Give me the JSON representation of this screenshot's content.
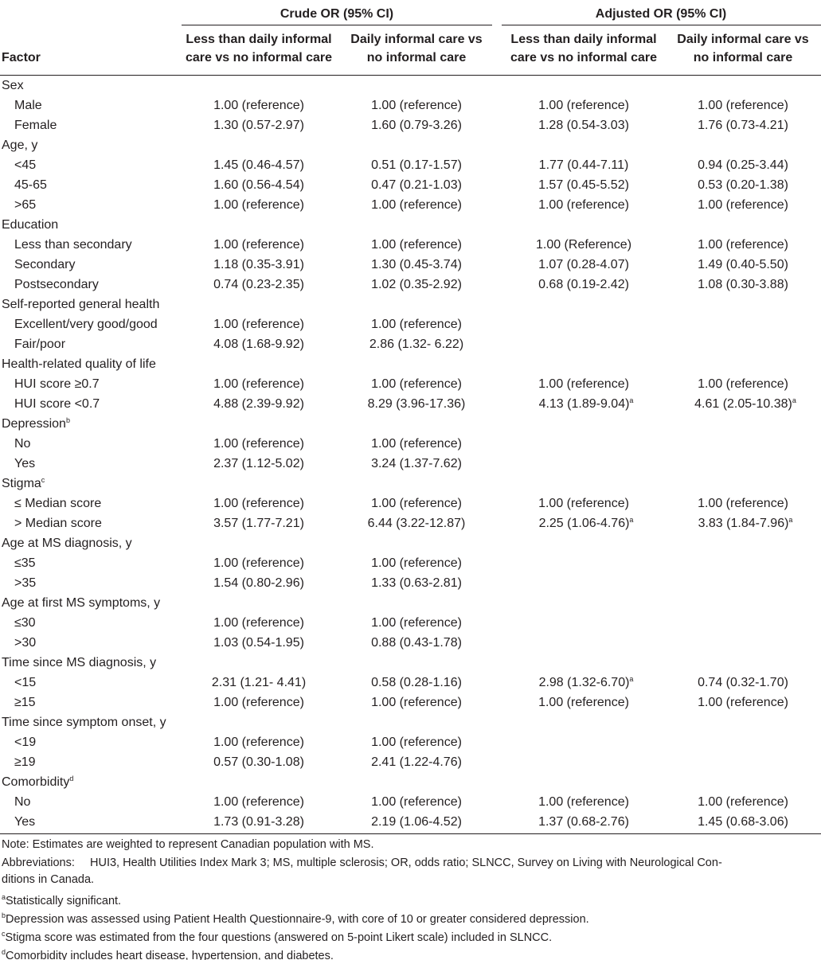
{
  "header": {
    "factor": "Factor",
    "groups": [
      {
        "label": "Crude OR (95% CI)",
        "columns": [
          [
            "Less than daily informal",
            "care vs no informal care"
          ],
          [
            "Daily informal care vs",
            "no informal care"
          ]
        ]
      },
      {
        "label": "Adjusted OR (95% CI)",
        "columns": [
          [
            "Less than daily informal",
            "care vs no informal care"
          ],
          [
            "Daily informal care vs",
            "no informal care"
          ]
        ]
      }
    ]
  },
  "table": {
    "rows": [
      {
        "label": "Sex"
      },
      {
        "label": "Male",
        "cells": [
          "1.00 (reference)",
          "1.00 (reference)",
          "1.00 (reference)",
          "1.00 (reference)"
        ]
      },
      {
        "label": "Female",
        "cells": [
          "1.30 (0.57-2.97)",
          "1.60 (0.79-3.26)",
          "1.28 (0.54-3.03)",
          "1.76 (0.73-4.21)"
        ]
      },
      {
        "label": "Age, y"
      },
      {
        "label": "<45",
        "cells": [
          "1.45 (0.46-4.57)",
          "0.51 (0.17-1.57)",
          "1.77 (0.44-7.11)",
          "0.94 (0.25-3.44)"
        ]
      },
      {
        "label": "45-65",
        "cells": [
          "1.60 (0.56-4.54)",
          "0.47 (0.21-1.03)",
          "1.57 (0.45-5.52)",
          "0.53 (0.20-1.38)"
        ]
      },
      {
        "label": ">65",
        "cells": [
          "1.00 (reference)",
          "1.00 (reference)",
          "1.00 (reference)",
          "1.00 (reference)"
        ]
      },
      {
        "label": "Education"
      },
      {
        "label": "Less than secondary",
        "cells": [
          "1.00 (reference)",
          "1.00 (reference)",
          "1.00 (Reference)",
          "1.00 (reference)"
        ]
      },
      {
        "label": "Secondary",
        "cells": [
          "1.18 (0.35-3.91)",
          "1.30 (0.45-3.74)",
          "1.07 (0.28-4.07)",
          "1.49 (0.40-5.50)"
        ]
      },
      {
        "label": "Postsecondary",
        "cells": [
          "0.74 (0.23-2.35)",
          "1.02 (0.35-2.92)",
          "0.68 (0.19-2.42)",
          "1.08 (0.30-3.88)"
        ]
      },
      {
        "label": "Self-reported general health"
      },
      {
        "label": "Excellent/very good/good",
        "cells": [
          "1.00 (reference)",
          "1.00 (reference)",
          null,
          null
        ]
      },
      {
        "label": "Fair/poor",
        "cells": [
          "4.08 (1.68-9.92)",
          "2.86 (1.32- 6.22)",
          null,
          null
        ]
      },
      {
        "label": "Health-related quality of life"
      },
      {
        "label": "HUI score ≥0.7",
        "cells": [
          "1.00 (reference)",
          "1.00 (reference)",
          "1.00 (reference)",
          "1.00 (reference)"
        ]
      },
      {
        "label": "HUI score <0.7",
        "cells": [
          "4.88 (2.39-9.92)",
          "8.29 (3.96-17.36)",
          {
            "text": "4.13 (1.89-9.04)",
            "sup": "a"
          },
          {
            "text": "4.61 (2.05-10.38)",
            "sup": "a"
          }
        ]
      },
      {
        "label": "Depression",
        "sup": "b"
      },
      {
        "label": "No",
        "cells": [
          "1.00 (reference)",
          "1.00 (reference)",
          null,
          null
        ]
      },
      {
        "label": "Yes",
        "cells": [
          "2.37 (1.12-5.02)",
          "3.24 (1.37-7.62)",
          null,
          null
        ]
      },
      {
        "label": "Stigma",
        "sup": "c"
      },
      {
        "label": "≤ Median score",
        "cells": [
          "1.00 (reference)",
          "1.00 (reference)",
          "1.00 (reference)",
          "1.00 (reference)"
        ]
      },
      {
        "label": "> Median score",
        "cells": [
          "3.57 (1.77-7.21)",
          "6.44 (3.22-12.87)",
          {
            "text": "2.25 (1.06-4.76)",
            "sup": "a"
          },
          {
            "text": "3.83 (1.84-7.96)",
            "sup": "a"
          }
        ]
      },
      {
        "label": "Age at MS diagnosis, y"
      },
      {
        "label": "≤35",
        "cells": [
          "1.00 (reference)",
          "1.00 (reference)",
          null,
          null
        ]
      },
      {
        "label": ">35",
        "cells": [
          "1.54 (0.80-2.96)",
          "1.33 (0.63-2.81)",
          null,
          null
        ]
      },
      {
        "label": "Age at first MS symptoms, y"
      },
      {
        "label": "≤30",
        "cells": [
          "1.00 (reference)",
          "1.00 (reference)",
          null,
          null
        ]
      },
      {
        "label": ">30",
        "cells": [
          "1.03 (0.54-1.95)",
          "0.88 (0.43-1.78)",
          null,
          null
        ]
      },
      {
        "label": "Time since MS diagnosis, y"
      },
      {
        "label": "<15",
        "cells": [
          "2.31 (1.21- 4.41)",
          "0.58 (0.28-1.16)",
          {
            "text": "2.98 (1.32-6.70)",
            "sup": "a"
          },
          "0.74 (0.32-1.70)"
        ]
      },
      {
        "label": "≥15",
        "cells": [
          "1.00 (reference)",
          "1.00 (reference)",
          "1.00 (reference)",
          "1.00 (reference)"
        ]
      },
      {
        "label": "Time since symptom onset, y"
      },
      {
        "label": "<19",
        "cells": [
          "1.00 (reference)",
          "1.00 (reference)",
          null,
          null
        ]
      },
      {
        "label": "≥19",
        "cells": [
          "0.57 (0.30-1.08)",
          "2.41 (1.22-4.76)",
          null,
          null
        ]
      },
      {
        "label": "Comorbidity",
        "sup": "d"
      },
      {
        "label": "No",
        "cells": [
          "1.00 (reference)",
          "1.00 (reference)",
          "1.00 (reference)",
          "1.00 (reference)"
        ]
      },
      {
        "label": "Yes",
        "cells": [
          "1.73 (0.91-3.28)",
          "2.19 (1.06-4.52)",
          "1.37 (0.68-2.76)",
          "1.45 (0.68-3.06)"
        ]
      }
    ]
  },
  "notes": {
    "note": "Note: Estimates are weighted to represent Canadian population with MS.",
    "abbreviations": {
      "label": "Abbreviations:",
      "lines": [
        "HUI3, Health Utilities Index Mark 3; MS, multiple sclerosis; OR, odds ratio; SLNCC, Survey on Living with Neurological Con-",
        "ditions in Canada."
      ]
    },
    "footnotes": [
      {
        "mark": "a",
        "text": "Statistically significant."
      },
      {
        "mark": "b",
        "text": "Depression was assessed using Patient Health Questionnaire-9, with core of 10 or greater considered depression."
      },
      {
        "mark": "c",
        "text": "Stigma score was estimated from the four questions (answered on 5-point Likert scale) included in SLNCC."
      },
      {
        "mark": "d",
        "text": "Comorbidity includes heart disease, hypertension, and diabetes."
      }
    ]
  }
}
